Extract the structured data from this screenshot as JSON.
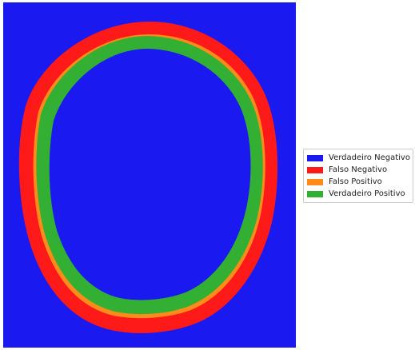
{
  "segmentation_figure": {
    "classes": [
      {
        "label": "Verdadeiro Negativo",
        "color": "#1a1af0"
      },
      {
        "label": "Falso Negativo",
        "color": "#ff1a1a"
      },
      {
        "label": "Falso Positivo",
        "color": "#ff8c1a"
      },
      {
        "label": "Verdadeiro Positivo",
        "color": "#33b033"
      }
    ]
  }
}
